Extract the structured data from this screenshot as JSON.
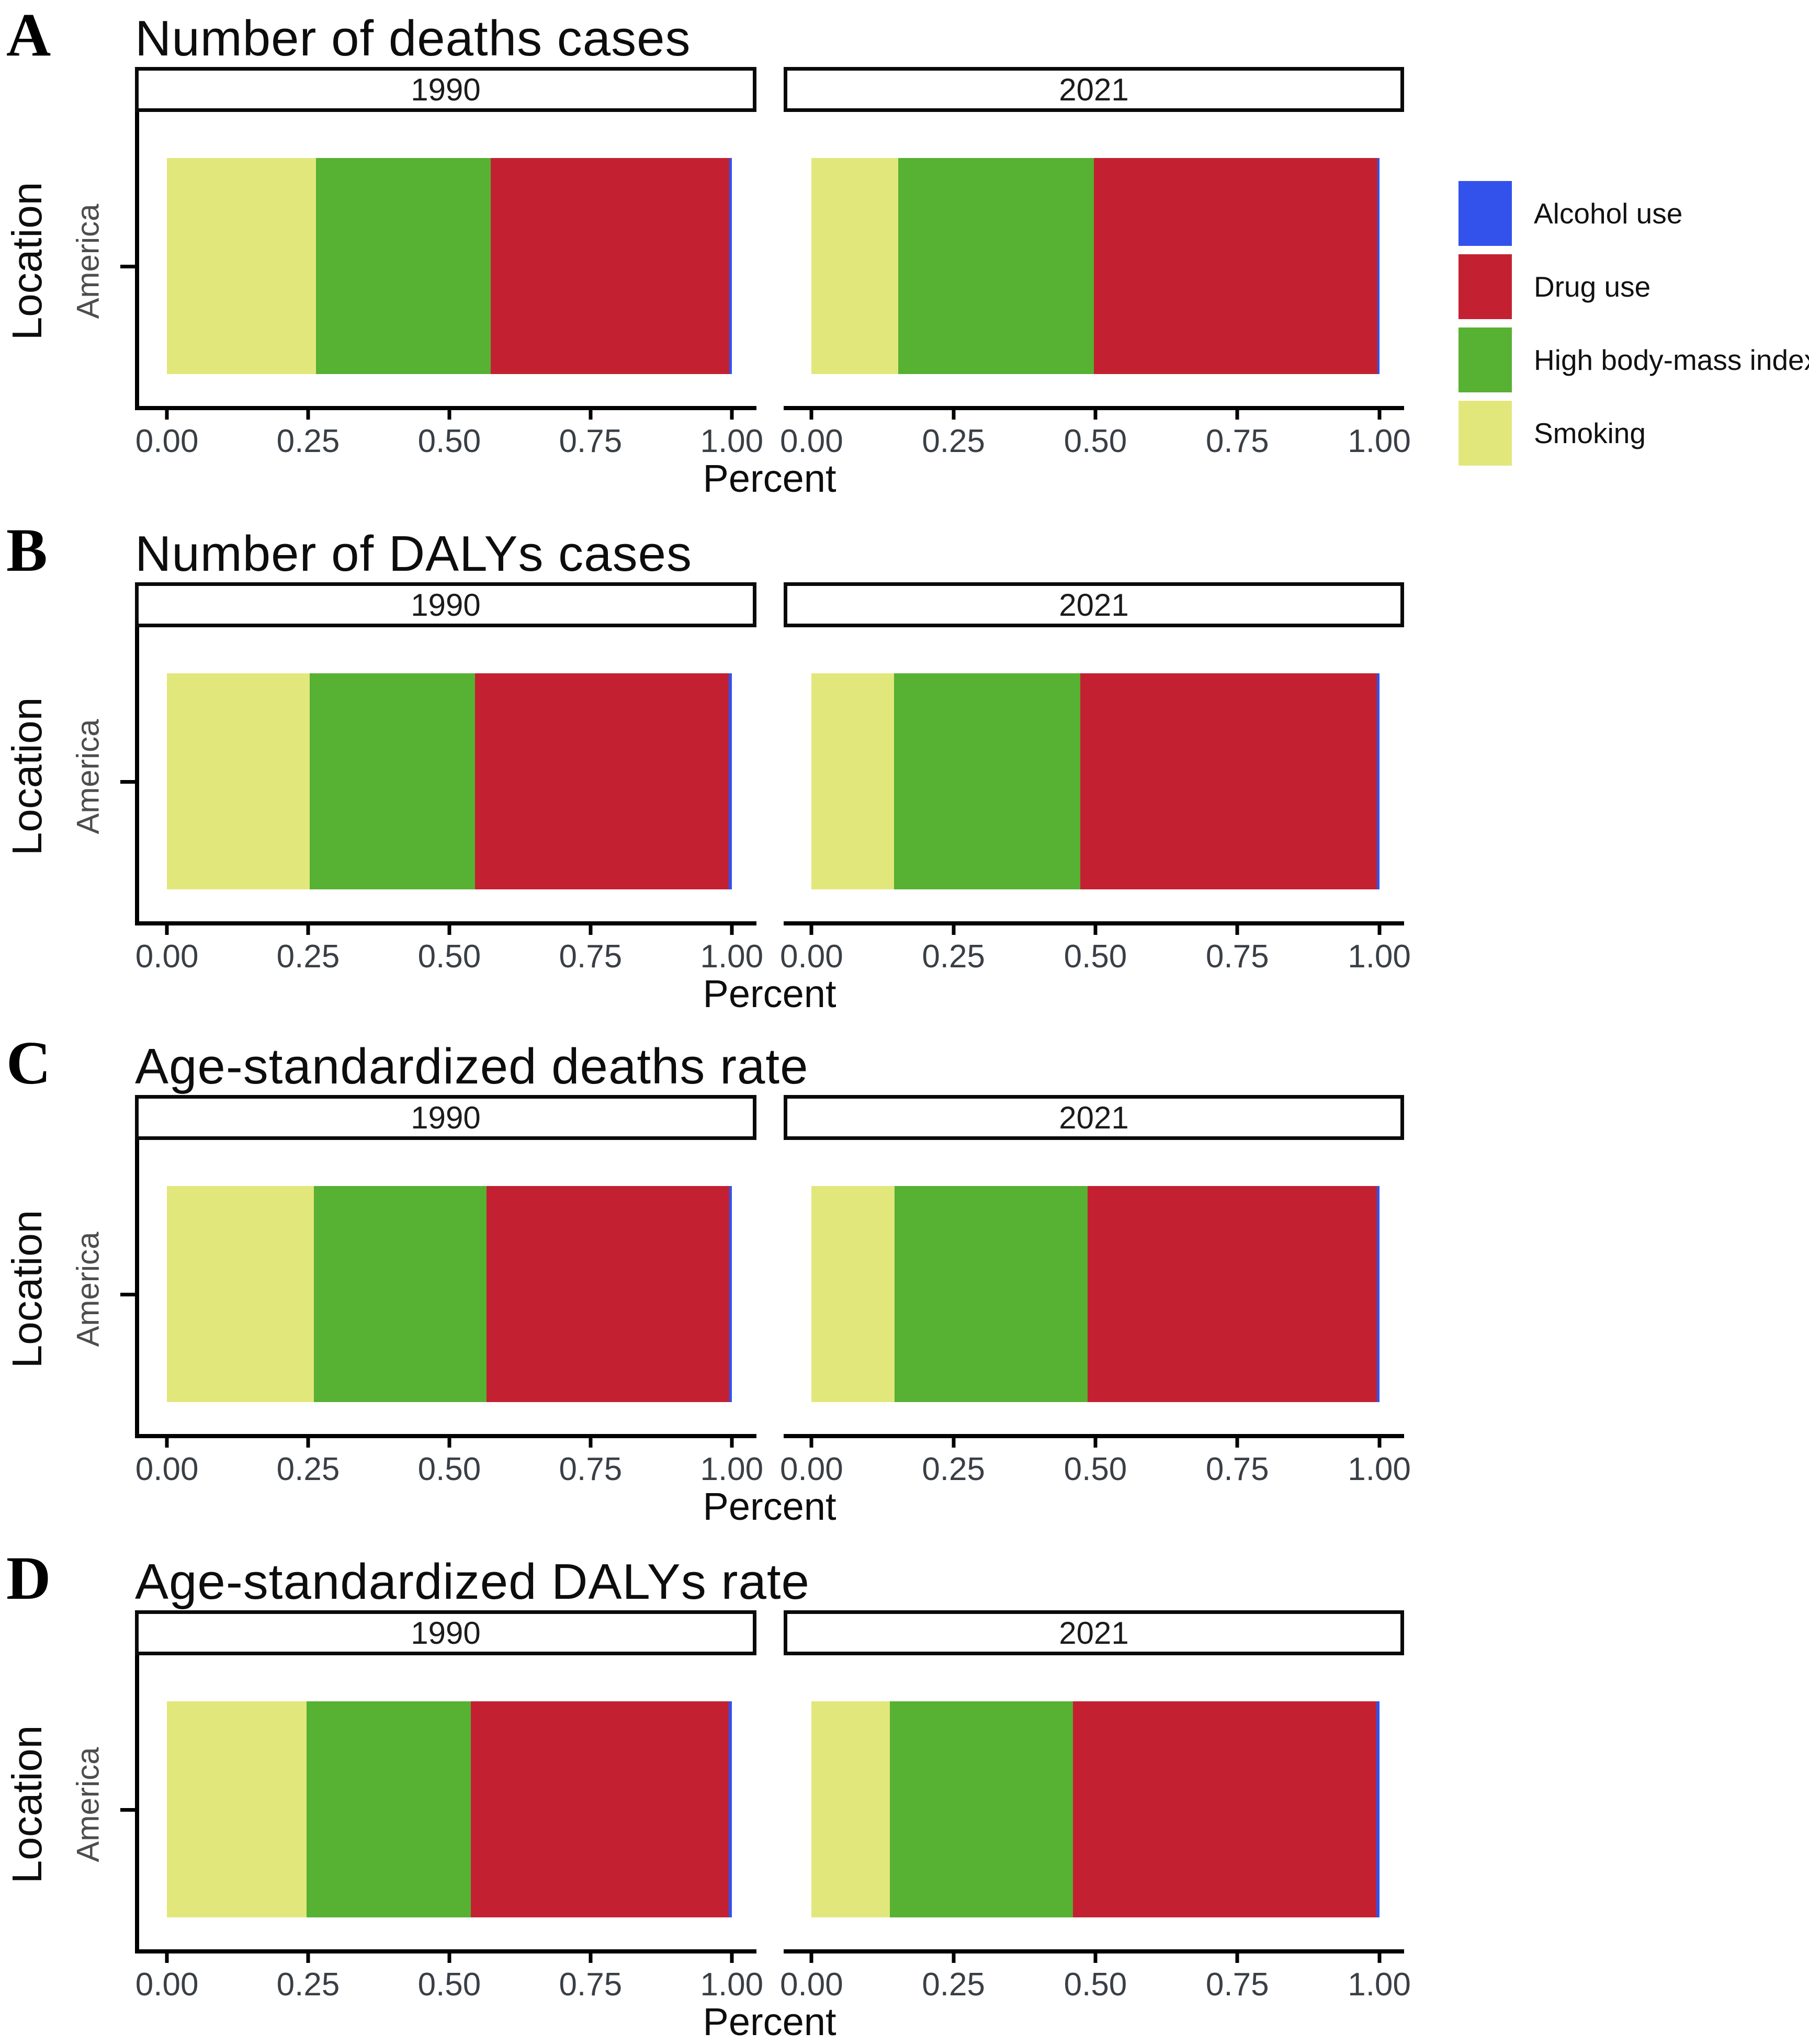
{
  "axis": {
    "x_label": "Percent",
    "x_ticks": [
      "0.00",
      "0.25",
      "0.50",
      "0.75",
      "1.00"
    ],
    "y_label": "Location",
    "y_tick": "America"
  },
  "legend": {
    "items": [
      {
        "id": "alcohol",
        "label": "Alcohol use",
        "color": "#3352EC"
      },
      {
        "id": "drug",
        "label": "Drug use",
        "color": "#C32132"
      },
      {
        "id": "bmi",
        "label": "High body-mass index",
        "color": "#57B133"
      },
      {
        "id": "smoking",
        "label": "Smoking",
        "color": "#E2E77C"
      }
    ]
  },
  "panels": [
    {
      "letter": "A",
      "title": "Number of deaths cases",
      "facets": [
        {
          "year": "1990",
          "segments": {
            "smoking": 0.264,
            "bmi": 0.309,
            "drug": 0.423,
            "alcohol": 0.004
          }
        },
        {
          "year": "2021",
          "segments": {
            "smoking": 0.153,
            "bmi": 0.344,
            "drug": 0.5,
            "alcohol": 0.003
          }
        }
      ]
    },
    {
      "letter": "B",
      "title": "Number of DALYs cases",
      "facets": [
        {
          "year": "1990",
          "segments": {
            "smoking": 0.253,
            "bmi": 0.292,
            "drug": 0.45,
            "alcohol": 0.005
          }
        },
        {
          "year": "2021",
          "segments": {
            "smoking": 0.145,
            "bmi": 0.328,
            "drug": 0.523,
            "alcohol": 0.004
          }
        }
      ]
    },
    {
      "letter": "C",
      "title": "Age-standardized deaths rate",
      "facets": [
        {
          "year": "1990",
          "segments": {
            "smoking": 0.26,
            "bmi": 0.306,
            "drug": 0.43,
            "alcohol": 0.004
          }
        },
        {
          "year": "2021",
          "segments": {
            "smoking": 0.146,
            "bmi": 0.34,
            "drug": 0.51,
            "alcohol": 0.004
          }
        }
      ]
    },
    {
      "letter": "D",
      "title": "Age-standardized DALYs rate",
      "facets": [
        {
          "year": "1990",
          "segments": {
            "smoking": 0.247,
            "bmi": 0.291,
            "drug": 0.457,
            "alcohol": 0.005
          }
        },
        {
          "year": "2021",
          "segments": {
            "smoking": 0.138,
            "bmi": 0.322,
            "drug": 0.535,
            "alcohol": 0.005
          }
        }
      ]
    }
  ],
  "chart_data": [
    {
      "type": "bar",
      "orientation": "horizontal",
      "stacked": true,
      "title": "Number of deaths cases",
      "panel_letter": "A",
      "xlabel": "Percent",
      "ylabel": "Location",
      "categories": [
        "America"
      ],
      "xlim": [
        0,
        1
      ],
      "x_ticks": [
        0.0,
        0.25,
        0.5,
        0.75,
        1.0
      ],
      "facets": [
        "1990",
        "2021"
      ],
      "legend_position": "right",
      "series": [
        {
          "name": "Smoking",
          "values": {
            "1990": 0.264,
            "2021": 0.153
          }
        },
        {
          "name": "High body-mass index",
          "values": {
            "1990": 0.309,
            "2021": 0.344
          }
        },
        {
          "name": "Drug use",
          "values": {
            "1990": 0.423,
            "2021": 0.5
          }
        },
        {
          "name": "Alcohol use",
          "values": {
            "1990": 0.004,
            "2021": 0.003
          }
        }
      ]
    },
    {
      "type": "bar",
      "orientation": "horizontal",
      "stacked": true,
      "title": "Number of DALYs cases",
      "panel_letter": "B",
      "xlabel": "Percent",
      "ylabel": "Location",
      "categories": [
        "America"
      ],
      "xlim": [
        0,
        1
      ],
      "x_ticks": [
        0.0,
        0.25,
        0.5,
        0.75,
        1.0
      ],
      "facets": [
        "1990",
        "2021"
      ],
      "legend_position": "none",
      "series": [
        {
          "name": "Smoking",
          "values": {
            "1990": 0.253,
            "2021": 0.145
          }
        },
        {
          "name": "High body-mass index",
          "values": {
            "1990": 0.292,
            "2021": 0.328
          }
        },
        {
          "name": "Drug use",
          "values": {
            "1990": 0.45,
            "2021": 0.523
          }
        },
        {
          "name": "Alcohol use",
          "values": {
            "1990": 0.005,
            "2021": 0.004
          }
        }
      ]
    },
    {
      "type": "bar",
      "orientation": "horizontal",
      "stacked": true,
      "title": "Age-standardized deaths rate",
      "panel_letter": "C",
      "xlabel": "Percent",
      "ylabel": "Location",
      "categories": [
        "America"
      ],
      "xlim": [
        0,
        1
      ],
      "x_ticks": [
        0.0,
        0.25,
        0.5,
        0.75,
        1.0
      ],
      "facets": [
        "1990",
        "2021"
      ],
      "legend_position": "none",
      "series": [
        {
          "name": "Smoking",
          "values": {
            "1990": 0.26,
            "2021": 0.146
          }
        },
        {
          "name": "High body-mass index",
          "values": {
            "1990": 0.306,
            "2021": 0.34
          }
        },
        {
          "name": "Drug use",
          "values": {
            "1990": 0.43,
            "2021": 0.51
          }
        },
        {
          "name": "Alcohol use",
          "values": {
            "1990": 0.004,
            "2021": 0.004
          }
        }
      ]
    },
    {
      "type": "bar",
      "orientation": "horizontal",
      "stacked": true,
      "title": "Age-standardized DALYs rate",
      "panel_letter": "D",
      "xlabel": "Percent",
      "ylabel": "Location",
      "categories": [
        "America"
      ],
      "xlim": [
        0,
        1
      ],
      "x_ticks": [
        0.0,
        0.25,
        0.5,
        0.75,
        1.0
      ],
      "facets": [
        "1990",
        "2021"
      ],
      "legend_position": "none",
      "series": [
        {
          "name": "Smoking",
          "values": {
            "1990": 0.247,
            "2021": 0.138
          }
        },
        {
          "name": "High body-mass index",
          "values": {
            "1990": 0.291,
            "2021": 0.322
          }
        },
        {
          "name": "Drug use",
          "values": {
            "1990": 0.457,
            "2021": 0.535
          }
        },
        {
          "name": "Alcohol use",
          "values": {
            "1990": 0.005,
            "2021": 0.005
          }
        }
      ]
    }
  ]
}
